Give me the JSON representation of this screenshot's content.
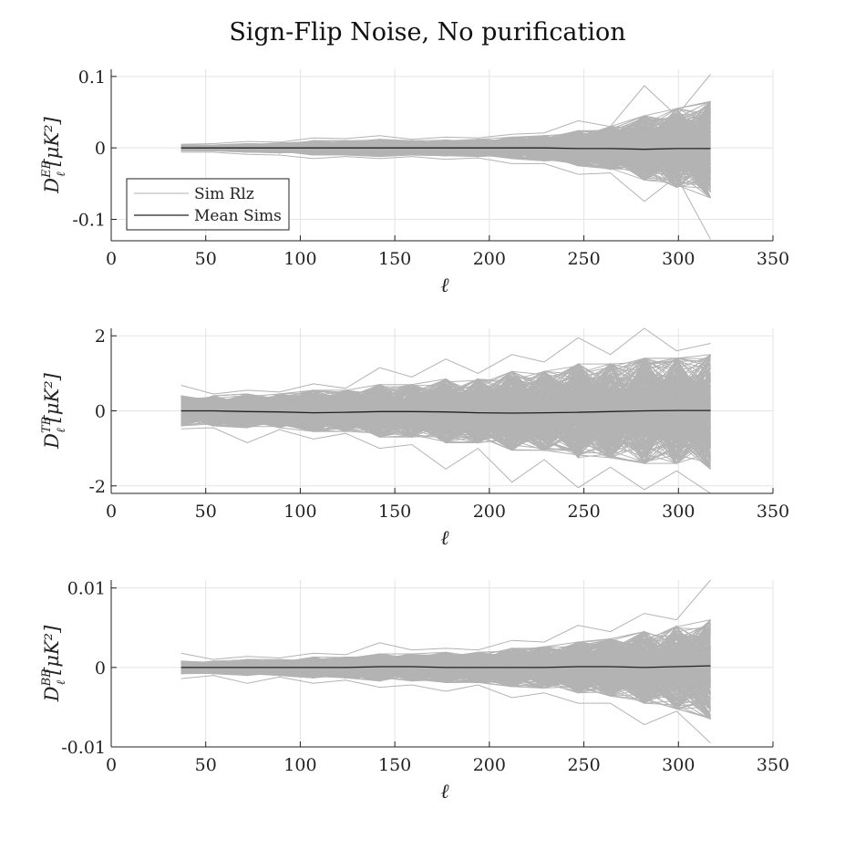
{
  "figure": {
    "title": "Sign-Flip Noise, No purification"
  },
  "chart_data": [
    {
      "type": "line",
      "id": "eb",
      "ylabel": {
        "main": "D",
        "sup": "EB",
        "sub": "ℓ",
        "units": "[μK²]"
      },
      "xlabel": "ℓ",
      "xlim": [
        0,
        350
      ],
      "ylim": [
        -0.13,
        0.11
      ],
      "xticks": [
        0,
        50,
        100,
        150,
        200,
        250,
        300,
        350
      ],
      "yticks": [
        -0.1,
        0,
        0.1
      ],
      "ytick_labels": [
        "-0.1",
        "0",
        "0.1"
      ],
      "grid": true,
      "x": [
        37,
        54,
        72,
        89,
        107,
        124,
        142,
        159,
        177,
        194,
        212,
        229,
        247,
        264,
        282,
        299,
        317
      ],
      "series": [
        {
          "name": "Mean Sims",
          "color": "#222222",
          "values": [
            0,
            0,
            0,
            0,
            0,
            0,
            0,
            0,
            0,
            0,
            0,
            0,
            -0.001,
            -0.001,
            -0.002,
            -0.001,
            -0.001
          ]
        }
      ],
      "envelope": {
        "name": "Sim Rlz",
        "color": "#b3b3b3",
        "upper": [
          0.004,
          0.004,
          0.006,
          0.007,
          0.01,
          0.01,
          0.012,
          0.01,
          0.011,
          0.012,
          0.015,
          0.017,
          0.024,
          0.03,
          0.045,
          0.055,
          0.065
        ],
        "lower": [
          -0.004,
          -0.004,
          -0.006,
          -0.007,
          -0.01,
          -0.01,
          -0.012,
          -0.01,
          -0.011,
          -0.012,
          -0.015,
          -0.018,
          -0.025,
          -0.03,
          -0.045,
          -0.055,
          -0.07
        ],
        "max": [
          0.005,
          0.006,
          0.009,
          0.008,
          0.014,
          0.013,
          0.017,
          0.012,
          0.015,
          0.014,
          0.019,
          0.021,
          0.038,
          0.03,
          0.087,
          0.045,
          0.103
        ],
        "min": [
          -0.006,
          -0.006,
          -0.009,
          -0.01,
          -0.015,
          -0.012,
          -0.015,
          -0.012,
          -0.016,
          -0.014,
          -0.022,
          -0.022,
          -0.037,
          -0.035,
          -0.075,
          -0.04,
          -0.128
        ]
      },
      "legend": {
        "placement": "bottom-left",
        "entries": [
          "Sim Rlz",
          "Mean Sims"
        ]
      }
    },
    {
      "type": "line",
      "id": "tb",
      "ylabel": {
        "main": "D",
        "sup": "TB",
        "sub": "ℓ",
        "units": "[μK²]"
      },
      "xlabel": "ℓ",
      "xlim": [
        0,
        350
      ],
      "ylim": [
        -2.2,
        2.2
      ],
      "xticks": [
        0,
        50,
        100,
        150,
        200,
        250,
        300,
        350
      ],
      "yticks": [
        -2,
        0,
        2
      ],
      "ytick_labels": [
        "-2",
        "0",
        "2"
      ],
      "grid": true,
      "x": [
        37,
        54,
        72,
        89,
        107,
        124,
        142,
        159,
        177,
        194,
        212,
        229,
        247,
        264,
        282,
        299,
        317
      ],
      "series": [
        {
          "name": "Mean Sims",
          "color": "#222222",
          "values": [
            0,
            0,
            -0.02,
            -0.03,
            -0.05,
            -0.04,
            -0.02,
            -0.02,
            -0.03,
            -0.05,
            -0.06,
            -0.05,
            -0.04,
            -0.02,
            0,
            0.01,
            0.01
          ]
        }
      ],
      "envelope": {
        "name": "Sim Rlz",
        "color": "#b3b3b3",
        "upper": [
          0.4,
          0.4,
          0.45,
          0.45,
          0.55,
          0.55,
          0.7,
          0.7,
          0.85,
          0.85,
          1.05,
          1.05,
          1.25,
          1.25,
          1.4,
          1.4,
          1.5
        ],
        "lower": [
          -0.4,
          -0.4,
          -0.45,
          -0.45,
          -0.55,
          -0.55,
          -0.7,
          -0.7,
          -0.85,
          -0.85,
          -1.05,
          -1.05,
          -1.25,
          -1.25,
          -1.4,
          -1.4,
          -1.55
        ],
        "max": [
          0.68,
          0.45,
          0.55,
          0.5,
          0.72,
          0.6,
          1.15,
          0.9,
          1.38,
          1.0,
          1.5,
          1.3,
          1.95,
          1.5,
          2.2,
          1.6,
          1.8
        ],
        "min": [
          -0.48,
          -0.45,
          -0.85,
          -0.5,
          -0.75,
          -0.6,
          -1.0,
          -0.9,
          -1.55,
          -1.0,
          -1.9,
          -1.3,
          -2.05,
          -1.5,
          -2.1,
          -1.6,
          -2.2
        ]
      },
      "legend": {
        "placement": "none",
        "entries": []
      }
    },
    {
      "type": "line",
      "id": "bb",
      "ylabel": {
        "main": "D",
        "sup": "BB",
        "sub": "ℓ",
        "units": "[μK²]"
      },
      "xlabel": "ℓ",
      "xlim": [
        0,
        350
      ],
      "ylim": [
        -0.01,
        0.011
      ],
      "xticks": [
        0,
        50,
        100,
        150,
        200,
        250,
        300,
        350
      ],
      "yticks": [
        -0.01,
        0,
        0.01
      ],
      "ytick_labels": [
        "-0.01",
        "0",
        "0.01"
      ],
      "grid": true,
      "x": [
        37,
        54,
        72,
        89,
        107,
        124,
        142,
        159,
        177,
        194,
        212,
        229,
        247,
        264,
        282,
        299,
        317
      ],
      "series": [
        {
          "name": "Mean Sims",
          "color": "#222222",
          "values": [
            0,
            0,
            0,
            0,
            0,
            0,
            0.0001,
            0.0001,
            0,
            0,
            0,
            0,
            0.0001,
            0.0001,
            0,
            0.0001,
            0.0002
          ]
        }
      ],
      "envelope": {
        "name": "Sim Rlz",
        "color": "#b3b3b3",
        "upper": [
          0.0008,
          0.0008,
          0.001,
          0.001,
          0.0013,
          0.0013,
          0.0017,
          0.0017,
          0.0019,
          0.0019,
          0.0024,
          0.0026,
          0.0032,
          0.0036,
          0.0045,
          0.0052,
          0.006
        ],
        "lower": [
          -0.0008,
          -0.0008,
          -0.001,
          -0.001,
          -0.0013,
          -0.0013,
          -0.0017,
          -0.0017,
          -0.0019,
          -0.0019,
          -0.0024,
          -0.0026,
          -0.0032,
          -0.0036,
          -0.0045,
          -0.0052,
          -0.0065
        ],
        "max": [
          0.0018,
          0.001,
          0.0014,
          0.0012,
          0.0018,
          0.0016,
          0.0031,
          0.0022,
          0.0024,
          0.0022,
          0.0034,
          0.0032,
          0.0053,
          0.0045,
          0.0068,
          0.006,
          0.011
        ],
        "min": [
          -0.0014,
          -0.001,
          -0.002,
          -0.0012,
          -0.002,
          -0.0016,
          -0.0025,
          -0.0022,
          -0.003,
          -0.0022,
          -0.0038,
          -0.0032,
          -0.0045,
          -0.0045,
          -0.0072,
          -0.0055,
          -0.0095
        ]
      },
      "legend": {
        "placement": "none",
        "entries": []
      }
    }
  ]
}
